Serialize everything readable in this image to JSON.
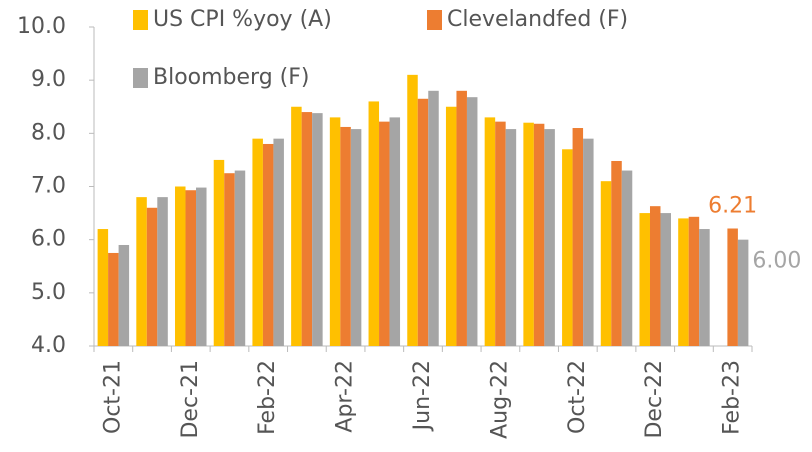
{
  "chart_data": {
    "type": "bar",
    "categories": [
      "Oct-21",
      null,
      "Dec-21",
      null,
      "Feb-22",
      null,
      "Apr-22",
      null,
      "Jun-22",
      null,
      "Aug-22",
      null,
      "Oct-22",
      null,
      "Dec-22",
      null,
      "Feb-23"
    ],
    "series": [
      {
        "name": "US CPI %yoy  (A)",
        "color": "#ffc000",
        "values": [
          6.2,
          6.8,
          7.0,
          7.5,
          7.9,
          8.5,
          8.3,
          8.6,
          9.1,
          8.5,
          8.3,
          8.2,
          7.7,
          7.1,
          6.5,
          6.4,
          null
        ]
      },
      {
        "name": "Clevelandfed (F)",
        "color": "#ed7d31",
        "values": [
          5.75,
          6.6,
          6.93,
          7.25,
          7.8,
          8.4,
          8.12,
          8.22,
          8.65,
          8.8,
          8.22,
          8.18,
          8.1,
          7.48,
          6.63,
          6.43,
          6.21
        ],
        "value_labels": [
          null,
          null,
          null,
          null,
          null,
          null,
          null,
          null,
          null,
          null,
          null,
          null,
          null,
          null,
          null,
          null,
          "6.21"
        ]
      },
      {
        "name": "Bloomberg (F)",
        "color": "#a5a5a5",
        "values": [
          5.9,
          6.8,
          6.98,
          7.3,
          7.9,
          8.38,
          8.08,
          8.3,
          8.8,
          8.68,
          8.08,
          8.08,
          7.9,
          7.3,
          6.5,
          6.2,
          6.0
        ],
        "value_labels": [
          null,
          null,
          null,
          null,
          null,
          null,
          null,
          null,
          null,
          null,
          null,
          null,
          null,
          null,
          null,
          null,
          "6.00"
        ]
      }
    ],
    "ylim": [
      4.0,
      10.0
    ],
    "yticks": [
      {
        "value": 4,
        "label": "4.0"
      },
      {
        "value": 5,
        "label": "5.0"
      },
      {
        "value": 6,
        "label": "6.0"
      },
      {
        "value": 7,
        "label": "7.0"
      },
      {
        "value": 8,
        "label": "8.0"
      },
      {
        "value": 9,
        "label": "9.0"
      },
      {
        "value": 10,
        "label": "10.0"
      }
    ],
    "grid": false
  }
}
